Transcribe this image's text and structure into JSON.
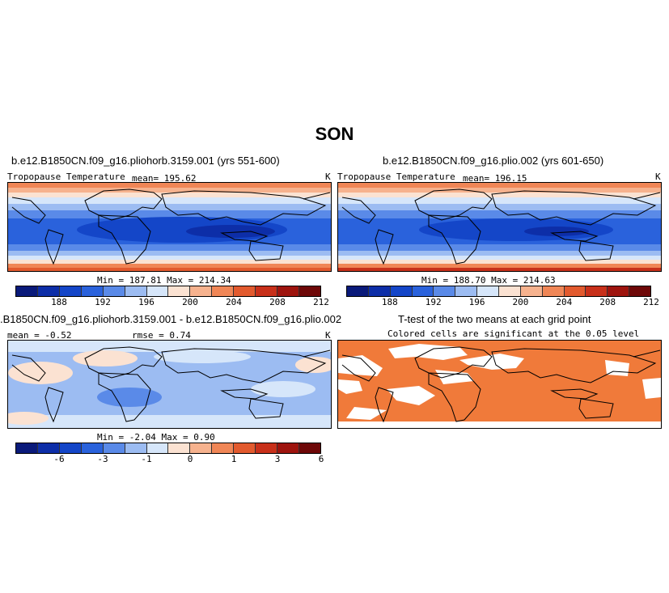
{
  "season": "SON",
  "panels": [
    {
      "title": "b.e12.B1850CN.f09_g16.pliohorb.3159.001 (yrs 551-600)",
      "left_label": "Tropopause Temperature",
      "mean_label": "mean= 195.62",
      "right_label": "K",
      "minmax": "Min = 187.81 Max = 214.34"
    },
    {
      "title": "b.e12.B1850CN.f09_g16.plio.002 (yrs 601-650)",
      "left_label": "Tropopause Temperature",
      "mean_label": "mean= 196.15",
      "right_label": "K",
      "minmax": "Min = 188.70 Max = 214.63"
    },
    {
      "title": ".B1850CN.f09_g16.pliohorb.3159.001 - b.e12.B1850CN.f09_g16.plio.002",
      "left_label": "mean = -0.52",
      "mean_label": "rmse = 0.74",
      "right_label": "K",
      "minmax": "Min = -2.04 Max = 0.90"
    },
    {
      "title": "T-test of the two means at each grid point",
      "subtitle": "Colored cells are significant at the 0.05 level"
    }
  ],
  "colorbar_abs": {
    "colors": [
      "#0a1a7a",
      "#0d2ea8",
      "#1446c8",
      "#2a62dc",
      "#5a8ae8",
      "#9cbcf2",
      "#d6e6fa",
      "#fbe2d2",
      "#f6b28e",
      "#f08656",
      "#e25a2e",
      "#c8301a",
      "#9e140e",
      "#6e0808"
    ],
    "tick_labels": [
      "188",
      "192",
      "196",
      "200",
      "204",
      "208",
      "212"
    ],
    "tick_boundaries": [
      2,
      4,
      6,
      8,
      10,
      12,
      14
    ]
  },
  "colorbar_diff": {
    "colors": [
      "#0a1a7a",
      "#0d2ea8",
      "#1446c8",
      "#2a62dc",
      "#5a8ae8",
      "#9cbcf2",
      "#d6e6fa",
      "#fbe2d2",
      "#f6b28e",
      "#f08656",
      "#e25a2e",
      "#c8301a",
      "#9e140e",
      "#6e0808"
    ],
    "tick_labels": [
      "-6",
      "-3",
      "-1",
      "0",
      "1",
      "3",
      "6"
    ],
    "tick_boundaries": [
      2,
      4,
      6,
      8,
      10,
      12,
      14
    ]
  },
  "ttest_color": "#f07a3a"
}
